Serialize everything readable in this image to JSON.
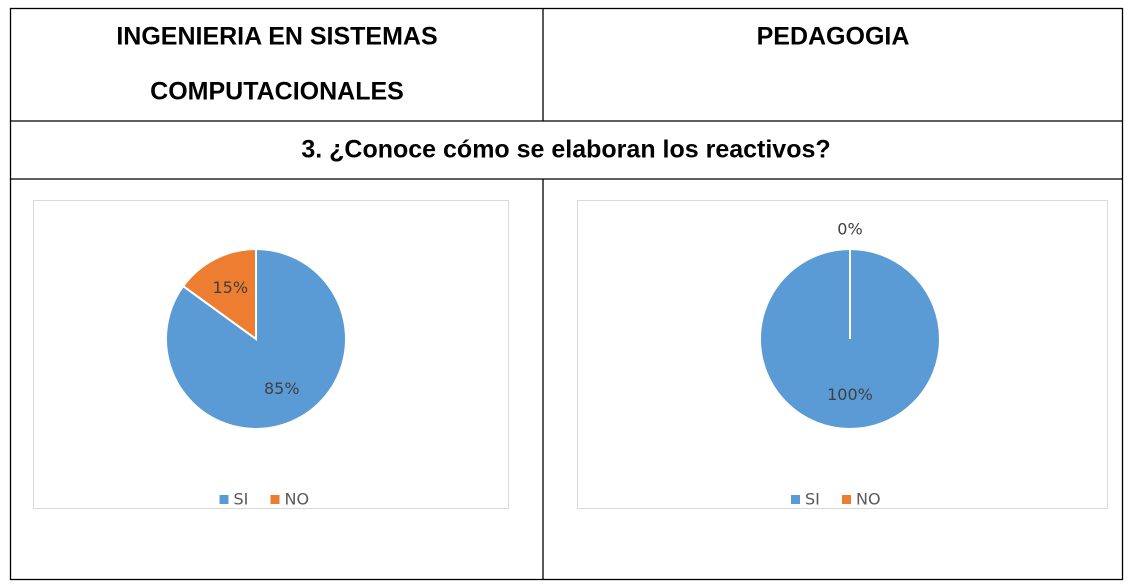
{
  "table": {
    "header": [
      "INGENIERIA EN SISTEMAS COMPUTACIONALES",
      "PEDAGOGIA"
    ],
    "header_lines": [
      [
        "INGENIERIA EN SISTEMAS",
        "COMPUTACIONALES"
      ],
      [
        "PEDAGOGIA"
      ]
    ],
    "question": "3. ¿Conoce cómo se elaboran los reactivos?"
  },
  "chart_data": [
    {
      "type": "pie",
      "categories": [
        "SI",
        "NO"
      ],
      "values": [
        85,
        15
      ],
      "value_labels": [
        "85%",
        "15%"
      ],
      "colors": [
        "#5b9bd5",
        "#ed7d31"
      ],
      "legend": "bottom"
    },
    {
      "type": "pie",
      "categories": [
        "SI",
        "NO"
      ],
      "values": [
        100,
        0
      ],
      "value_labels": [
        "100%",
        "0%"
      ],
      "colors": [
        "#5b9bd5",
        "#ed7d31"
      ],
      "legend": "bottom"
    }
  ]
}
